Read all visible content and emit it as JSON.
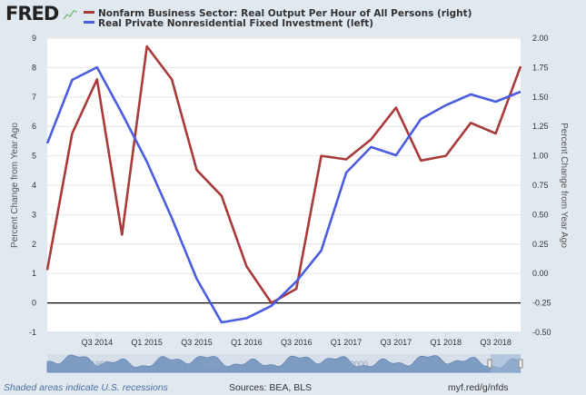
{
  "logo": "FRED",
  "footer": {
    "recession_note": "Shaded areas indicate U.S. recessions",
    "sources": "Sources: BEA, BLS",
    "link": "myf.red/g/nfds"
  },
  "navigator": {
    "labels": [
      "1960",
      "1980",
      "2000"
    ]
  },
  "colors": {
    "red_series": "#a83a3a",
    "blue_series": "#4a5de0",
    "background": "#e1e9f0"
  },
  "chart_data": {
    "type": "line",
    "x": [
      "Q1 2014",
      "Q2 2014",
      "Q3 2014",
      "Q4 2014",
      "Q1 2015",
      "Q2 2015",
      "Q3 2015",
      "Q4 2015",
      "Q1 2016",
      "Q2 2016",
      "Q3 2016",
      "Q4 2016",
      "Q1 2017",
      "Q2 2017",
      "Q3 2017",
      "Q4 2017",
      "Q1 2018",
      "Q2 2018",
      "Q3 2018",
      "Q4 2018"
    ],
    "x_tick_labels": [
      "Q3 2014",
      "Q1 2015",
      "Q3 2015",
      "Q1 2016",
      "Q3 2016",
      "Q1 2017",
      "Q3 2017",
      "Q1 2018",
      "Q3 2018"
    ],
    "ylabel_left": "Percent Change from Year Ago",
    "ylabel_right": "Percent Change from Year Ago",
    "ylim_left": [
      -1,
      9
    ],
    "ylim_right": [
      -0.5,
      2.0
    ],
    "yticks_left": [
      "-1",
      "0",
      "1",
      "2",
      "3",
      "4",
      "5",
      "6",
      "7",
      "8",
      "9"
    ],
    "yticks_right": [
      "-0.50",
      "-0.25",
      "0.00",
      "0.25",
      "0.50",
      "0.75",
      "1.00",
      "1.25",
      "1.50",
      "1.75",
      "2.00"
    ],
    "grid": true,
    "legend": "top",
    "series": [
      {
        "name": "Nonfarm Business Sector: Real Output Per Hour of All Persons (right)",
        "axis": "right",
        "color": "#a83a3a",
        "values": [
          0.03,
          1.19,
          1.65,
          0.33,
          1.93,
          1.65,
          0.88,
          0.66,
          0.06,
          -0.25,
          -0.13,
          1.0,
          0.97,
          1.14,
          1.41,
          0.96,
          1.0,
          1.28,
          1.19,
          1.76
        ]
      },
      {
        "name": "Real Private Nonresidential Fixed Investment (left)",
        "axis": "left",
        "color": "#4a5de0",
        "values": [
          5.42,
          7.58,
          8.01,
          6.44,
          4.8,
          2.89,
          0.82,
          -0.66,
          -0.52,
          -0.1,
          0.73,
          1.78,
          4.43,
          5.3,
          5.02,
          6.25,
          6.72,
          7.09,
          6.84,
          7.18
        ]
      }
    ]
  }
}
